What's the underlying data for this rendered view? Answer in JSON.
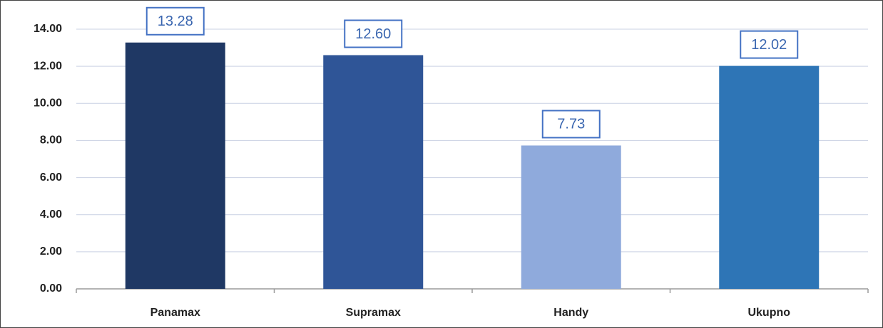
{
  "chart_data": {
    "type": "bar",
    "categories": [
      "Panamax",
      "Supramax",
      "Handy",
      "Ukupno"
    ],
    "values": [
      13.28,
      12.6,
      7.73,
      12.02
    ],
    "value_labels": [
      "13.28",
      "12.60",
      "7.73",
      "12.02"
    ],
    "colors": [
      "#1f3864",
      "#2f5597",
      "#8faadc",
      "#2e75b6"
    ],
    "ylim": [
      0,
      14
    ],
    "yticks": [
      {
        "value": 0,
        "label": "0.00"
      },
      {
        "value": 2,
        "label": "2.00"
      },
      {
        "value": 4,
        "label": "4.00"
      },
      {
        "value": 6,
        "label": "6.00"
      },
      {
        "value": 8,
        "label": "8.00"
      },
      {
        "value": 10,
        "label": "10.00"
      },
      {
        "value": 12,
        "label": "12.00"
      },
      {
        "value": 14,
        "label": "14.00"
      }
    ],
    "grid": true
  }
}
